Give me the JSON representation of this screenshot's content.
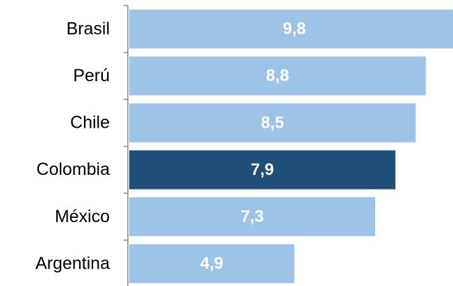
{
  "chart_data": {
    "type": "barh",
    "categories": [
      "Brasil",
      "Perú",
      "Chile",
      "Colombia",
      "México",
      "Argentina"
    ],
    "values": [
      9.8,
      8.8,
      8.5,
      7.9,
      7.3,
      4.9
    ],
    "value_labels": [
      "9,8",
      "8,8",
      "8,5",
      "7,9",
      "7,3",
      "4,9"
    ],
    "colors": [
      "#9dc3e6",
      "#9dc3e6",
      "#9dc3e6",
      "#1f4e79",
      "#9dc3e6",
      "#9dc3e6"
    ]
  }
}
